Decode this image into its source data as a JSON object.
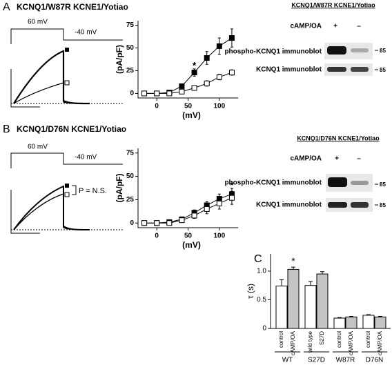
{
  "panel_labels": [
    "A",
    "B",
    "C"
  ],
  "panel_a": {
    "title": "KCNQ1/W87R KCNE1/Yotiao",
    "step_labels": [
      "60 mV",
      "-40 mV"
    ],
    "blot": {
      "title": "KCNQ1/W87R KCNE1/Yotiao",
      "condition": "cAMP/OA",
      "lanes": [
        "+",
        "–"
      ],
      "rows": [
        "phospho-KCNQ1 immunoblot",
        "KCNQ1 immunoblot"
      ],
      "size_label": "85"
    }
  },
  "panel_b": {
    "title": "KCNQ1/D76N KCNE1/Yotiao",
    "step_labels": [
      "60 mV",
      "-40 mV"
    ],
    "annotation": "P = N.S.",
    "blot": {
      "title": "KCNQ1/D76N KCNE1/Yotiao",
      "condition": "cAMP/OA",
      "lanes": [
        "+",
        "–"
      ],
      "rows": [
        "phospho-KCNQ1 immunoblot",
        "KCNQ1 immunoblot"
      ],
      "size_label": "85"
    }
  },
  "chart_data": [
    {
      "type": "line",
      "xlabel": "(mV)",
      "ylabel": "(pA/pF)",
      "x": [
        -20,
        0,
        20,
        40,
        60,
        80,
        100,
        120
      ],
      "series": [
        {
          "color": "#000000",
          "marker_fill": "#000000",
          "values": [
            0,
            0,
            1,
            8,
            23,
            39,
            52,
            61
          ],
          "errors": [
            0.5,
            0.5,
            1,
            2,
            4,
            7,
            9,
            10
          ]
        },
        {
          "color": "#000000",
          "marker_fill": "#ffffff",
          "values": [
            0,
            0,
            0,
            2,
            6,
            11,
            18,
            23
          ],
          "errors": [
            0.5,
            0.5,
            0.5,
            1,
            2,
            3,
            3,
            3
          ]
        }
      ],
      "xlim": [
        -30,
        130
      ],
      "xticks": [
        0,
        50,
        100
      ],
      "ylim": [
        -5,
        80
      ],
      "yticks": [
        0,
        25,
        50,
        75
      ],
      "annotations": [
        {
          "text": "*",
          "x": 60,
          "y": 30
        }
      ]
    },
    {
      "type": "line",
      "xlabel": "(mV)",
      "ylabel": "(pA/pF)",
      "x": [
        -20,
        0,
        20,
        40,
        60,
        80,
        100,
        120
      ],
      "series": [
        {
          "color": "#000000",
          "marker_fill": "#000000",
          "values": [
            0,
            0,
            1,
            4,
            11,
            19,
            26,
            31
          ],
          "errors": [
            0.5,
            0.5,
            1,
            2,
            3,
            4,
            5,
            6
          ]
        },
        {
          "color": "#000000",
          "marker_fill": "#ffffff",
          "values": [
            0,
            0,
            0,
            3,
            8,
            15,
            21,
            27
          ],
          "errors": [
            0.5,
            0.5,
            1,
            2,
            3,
            5,
            6,
            7
          ]
        }
      ],
      "xlim": [
        -30,
        130
      ],
      "xticks": [
        0,
        50,
        100
      ],
      "ylim": [
        -5,
        80
      ],
      "yticks": [
        0,
        25,
        50,
        75
      ],
      "annotations": [
        {
          "text": "*",
          "x": 120,
          "y": 40
        }
      ]
    },
    {
      "type": "bar",
      "ylabel": "τ (s)",
      "categories": [
        "control",
        "cAMP/OA",
        "wild type",
        "S27D",
        "control",
        "cAMP/OA",
        "control",
        "cAMP/OA"
      ],
      "groups": [
        "WT",
        "S27D",
        "W87R",
        "D76N"
      ],
      "values": [
        0.74,
        1.03,
        0.75,
        0.95,
        0.18,
        0.2,
        0.23,
        0.2
      ],
      "errors": [
        0.11,
        0.04,
        0.07,
        0.04,
        0.01,
        0.01,
        0.01,
        0.01
      ],
      "colors": [
        "#ffffff",
        "#c4c4c4",
        "#ffffff",
        "#c4c4c4",
        "#ffffff",
        "#c4c4c4",
        "#ffffff",
        "#c4c4c4"
      ],
      "ylim": [
        0,
        1.3
      ],
      "yticks": [
        0,
        0.5,
        {
          "value": 1,
          "label": "1.0"
        }
      ],
      "annotations": [
        {
          "text": "*",
          "bar": 1
        }
      ]
    }
  ]
}
